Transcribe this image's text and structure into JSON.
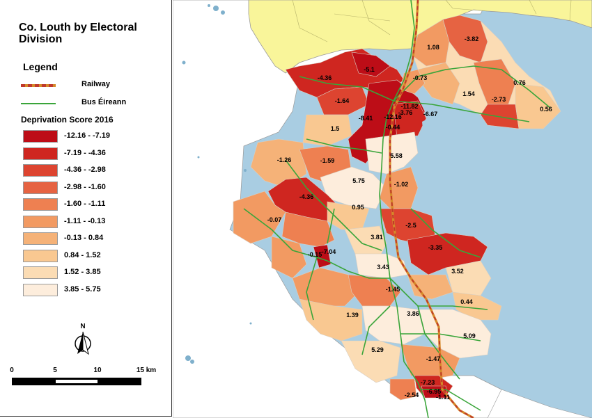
{
  "title": "Co. Louth by Electoral Division",
  "legend": {
    "heading": "Legend",
    "lines": [
      {
        "label": "Railway",
        "color": "#8c6b3e",
        "dash": "#c0392b",
        "icon": "railway-line-icon"
      },
      {
        "label": "Bus Éireann",
        "color": "#3aa53a",
        "icon": "bus-route-line-icon"
      }
    ],
    "classes_heading": "Deprivation Score 2016",
    "classes": [
      {
        "label": "-12.16 - -7.19",
        "color": "#bd0d17"
      },
      {
        "label": "-7.19 - -4.36",
        "color": "#cf2620"
      },
      {
        "label": "-4.36 - -2.98",
        "color": "#dd4430"
      },
      {
        "label": "-2.98 - -1.60",
        "color": "#e66342"
      },
      {
        "label": "-1.60 - -1.11",
        "color": "#ee8051"
      },
      {
        "label": "-1.11 - -0.13",
        "color": "#f29a62"
      },
      {
        "label": "-0.13 - 0.84",
        "color": "#f5b278"
      },
      {
        "label": "0.84 - 1.52",
        "color": "#f9c891"
      },
      {
        "label": "1.52 - 3.85",
        "color": "#fbdcb4"
      },
      {
        "label": "3.85 - 5.75",
        "color": "#fdeddc"
      }
    ]
  },
  "north_arrow": {
    "label": "N",
    "icon": "north-arrow-icon"
  },
  "scale": {
    "ticks": [
      "0",
      "5",
      "10",
      "15 km"
    ]
  },
  "map": {
    "colors": {
      "sea": "#a9cde2",
      "neighbour": "#f9f59a",
      "land_outside": "#ffffff",
      "border": "#9a9a9a",
      "lake": "#7fb0cc"
    },
    "values": [
      "-3.82",
      "1.08",
      "-4.36",
      "-5.1",
      "-0.73",
      "1.54",
      "-2.73",
      "0.76",
      "-1.64",
      "-11.82",
      "-3.76",
      "-6.67",
      "-12.16",
      "0.56",
      "1.5",
      "-8.41",
      "-0.44",
      "5.58",
      "-1.26",
      "-1.59",
      "5.75",
      "-1.02",
      "-4.36",
      "0.95",
      "-0.07",
      "-2.5",
      "3.81",
      "-0.15",
      "-7.04",
      "-3.35",
      "3.43",
      "3.52",
      "-1.45",
      "0.44",
      "1.39",
      "3.86",
      "5.09",
      "5.29",
      "-1.47",
      "-7.23",
      "-2.54",
      "-6.95",
      "-1.11"
    ]
  }
}
